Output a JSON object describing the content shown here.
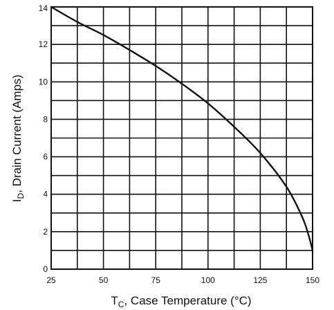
{
  "chart_data": {
    "type": "line",
    "title": "",
    "xlabel": {
      "main": "T",
      "sub": "C",
      "rest": ", Case Temperature (°C)"
    },
    "ylabel": {
      "main": "I",
      "sub": "D",
      "rest": ", Drain Current (Amps)"
    },
    "xlim": [
      25,
      150
    ],
    "ylim": [
      0,
      14
    ],
    "x_grid": [
      25,
      37.5,
      50,
      62.5,
      75,
      87.5,
      100,
      112.5,
      125,
      137.5,
      150
    ],
    "y_grid": [
      0,
      1,
      2,
      3,
      4,
      5,
      6,
      7,
      8,
      9,
      10,
      11,
      12,
      13,
      14
    ],
    "x_ticks": [
      {
        "value": 25,
        "label": "25"
      },
      {
        "value": 50,
        "label": "50"
      },
      {
        "value": 75,
        "label": "75"
      },
      {
        "value": 100,
        "label": "100"
      },
      {
        "value": 125,
        "label": "125"
      },
      {
        "value": 150,
        "label": "150"
      }
    ],
    "y_ticks": [
      {
        "value": 0,
        "label": "0"
      },
      {
        "value": 2,
        "label": "2"
      },
      {
        "value": 4,
        "label": "4"
      },
      {
        "value": 6,
        "label": "6"
      },
      {
        "value": 8,
        "label": "8"
      },
      {
        "value": 10,
        "label": "10"
      },
      {
        "value": 12,
        "label": "12"
      },
      {
        "value": 14,
        "label": "14"
      }
    ],
    "grid": true,
    "series": [
      {
        "x": [
          25,
          37.5,
          50,
          62.5,
          75,
          87.5,
          100,
          112.5,
          125,
          137.5,
          145,
          148,
          150
        ],
        "y": [
          14,
          13.2,
          12.5,
          11.7,
          10.85,
          9.9,
          8.85,
          7.6,
          6.2,
          4.4,
          2.8,
          1.85,
          1.0
        ]
      }
    ]
  }
}
